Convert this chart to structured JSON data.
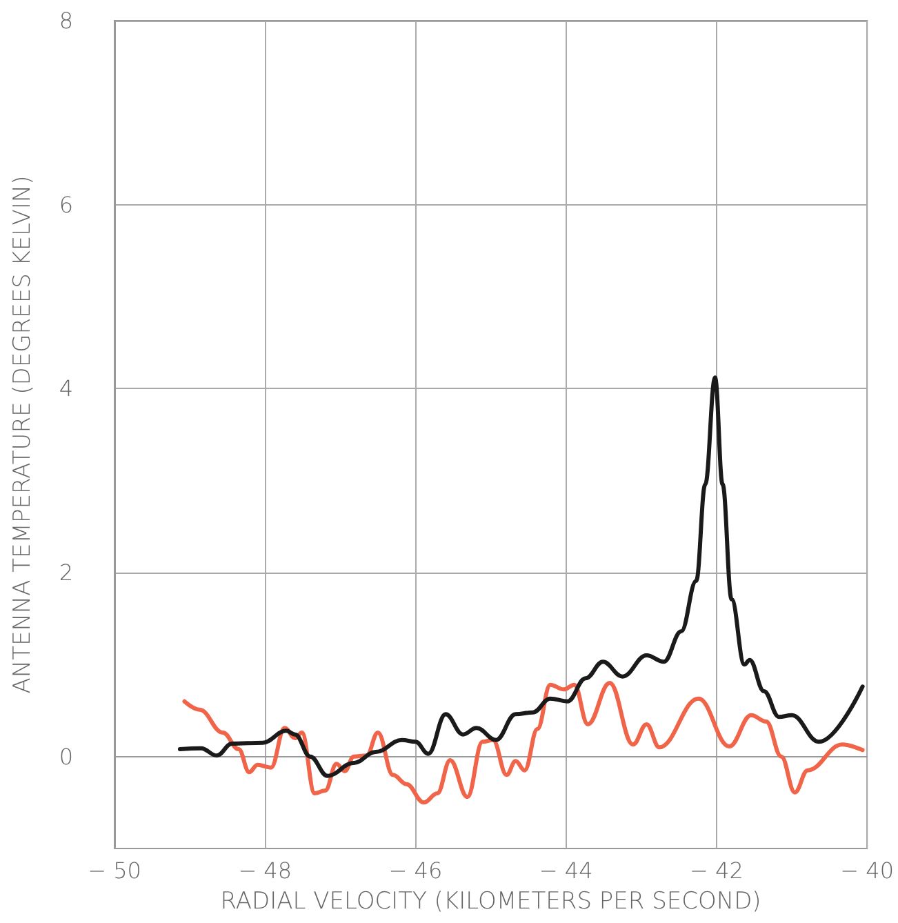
{
  "chart_data": {
    "type": "line",
    "xlabel": "RADIAL VELOCITY (KILOMETERS PER SECOND)",
    "ylabel": "ANTENNA TEMPERATURE (DEGREES KELVIN)",
    "xlim": [
      -50,
      -40
    ],
    "ylim": [
      -1,
      8
    ],
    "xticks": [
      {
        "value": -50,
        "label": "− 50"
      },
      {
        "value": -48,
        "label": "− 48"
      },
      {
        "value": -46,
        "label": "− 46"
      },
      {
        "value": -44,
        "label": "− 44"
      },
      {
        "value": -42,
        "label": "− 42"
      },
      {
        "value": -40,
        "label": "− 40"
      }
    ],
    "yticks": [
      0,
      2,
      4,
      6,
      8
    ],
    "grid": true,
    "marker": "none",
    "line_style": "solid",
    "series": [
      {
        "color": "#f0644a",
        "x": [
          -49.07,
          -48.87,
          -48.56,
          -48.35,
          -48.21,
          -48.1,
          -47.92,
          -47.74,
          -47.6,
          -47.51,
          -47.34,
          -47.2,
          -47.05,
          -46.94,
          -46.82,
          -46.65,
          -46.5,
          -46.3,
          -46.12,
          -45.89,
          -45.71,
          -45.54,
          -45.31,
          -45.11,
          -44.97,
          -44.79,
          -44.67,
          -44.55,
          -44.38,
          -44.21,
          -44.03,
          -43.89,
          -43.71,
          -43.42,
          -43.11,
          -42.93,
          -42.76,
          -42.24,
          -41.83,
          -41.54,
          -41.34,
          -41.14,
          -40.96,
          -40.79,
          -40.33,
          -40.06
        ],
        "values": [
          0.6,
          0.51,
          0.26,
          0.08,
          -0.17,
          -0.09,
          -0.12,
          0.31,
          0.2,
          0.26,
          -0.4,
          -0.37,
          -0.08,
          -0.16,
          0.0,
          0.01,
          0.26,
          -0.2,
          -0.3,
          -0.5,
          -0.4,
          -0.04,
          -0.44,
          0.16,
          0.18,
          -0.2,
          -0.05,
          -0.15,
          0.3,
          0.78,
          0.73,
          0.78,
          0.35,
          0.8,
          0.13,
          0.35,
          0.1,
          0.63,
          0.11,
          0.45,
          0.38,
          0.0,
          -0.39,
          -0.15,
          0.13,
          0.07
        ]
      },
      {
        "color": "#1a1a1a",
        "x": [
          -49.13,
          -48.85,
          -48.64,
          -48.44,
          -48.03,
          -47.72,
          -47.6,
          -47.4,
          -47.17,
          -46.82,
          -46.53,
          -46.18,
          -46.0,
          -45.83,
          -45.6,
          -45.37,
          -45.19,
          -44.93,
          -44.67,
          -44.44,
          -44.21,
          -43.98,
          -43.74,
          -43.51,
          -43.25,
          -42.93,
          -42.7,
          -42.47,
          -42.27,
          -42.15,
          -42.02,
          -41.92,
          -41.8,
          -41.63,
          -41.56,
          -41.37,
          -41.17,
          -41.0,
          -40.64,
          -40.06
        ],
        "values": [
          0.08,
          0.09,
          0.01,
          0.14,
          0.15,
          0.28,
          0.24,
          0.0,
          -0.21,
          -0.07,
          0.05,
          0.18,
          0.16,
          0.03,
          0.46,
          0.24,
          0.31,
          0.18,
          0.46,
          0.48,
          0.63,
          0.6,
          0.85,
          1.03,
          0.87,
          1.1,
          1.03,
          1.36,
          1.91,
          2.96,
          4.12,
          2.96,
          1.71,
          1.0,
          1.05,
          0.71,
          0.43,
          0.45,
          0.16,
          0.76
        ]
      }
    ]
  }
}
